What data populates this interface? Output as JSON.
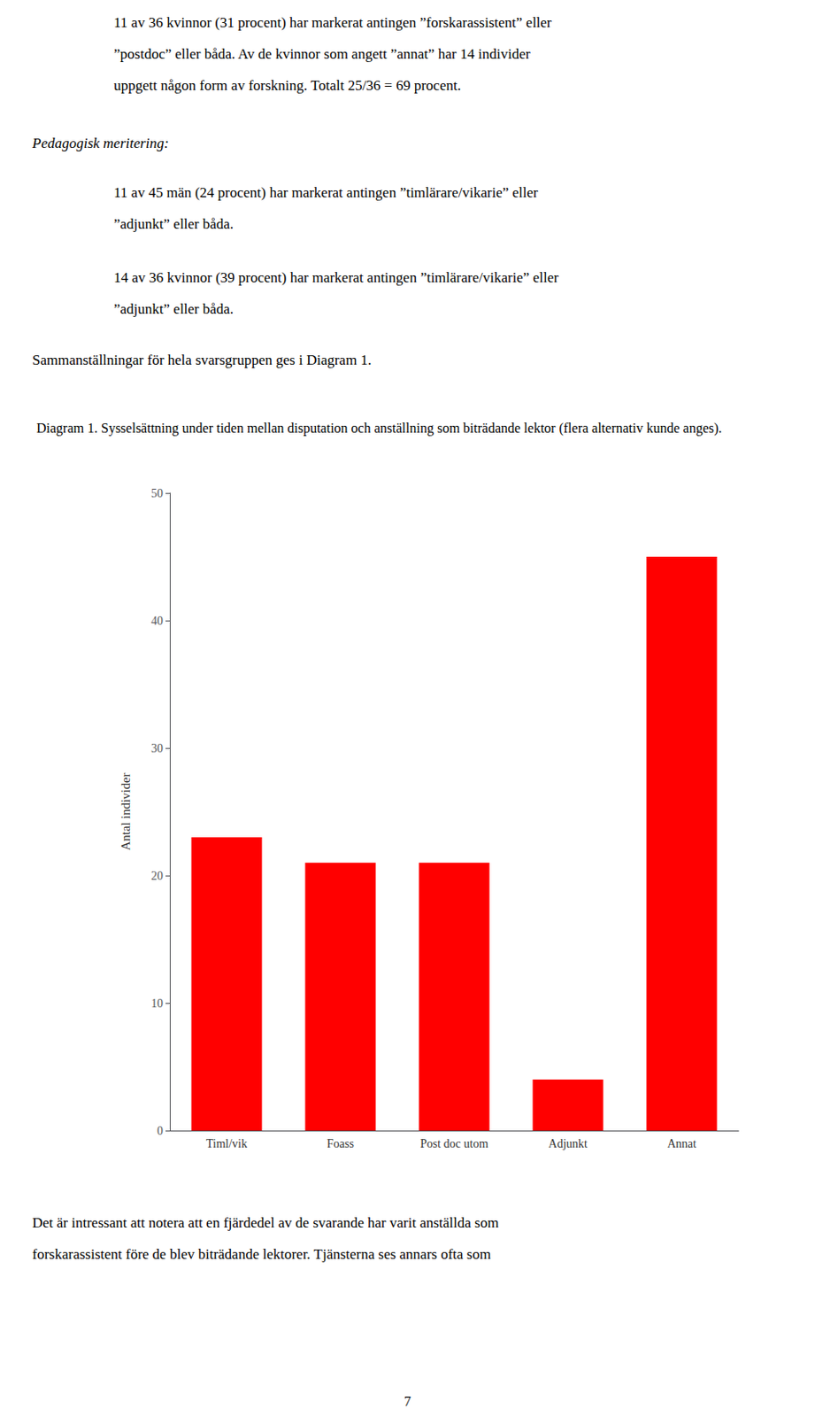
{
  "chart_data": {
    "type": "bar",
    "title": "Diagram 1. Sysselsättning under tiden mellan disputation och anställning som biträdande lektor (flera alternativ kunde anges).",
    "annotations": [
      "11 av 36 kvinnor (31 procent) har markerat antingen ”forskarassistent” eller",
      "”postdoc” eller båda. Av de kvinnor som angett ”annat” har 14 individer",
      "uppgett någon form av forskning. Totalt 25/36 = 69 procent.",
      "Pedagogisk meritering:",
      "11 av 45 män (24 procent) har markerat antingen ”timlärare/vikarie” eller",
      "”adjunkt” eller båda.",
      "14 av 36 kvinnor (39 procent) har markerat antingen ”timlärare/vikarie” eller",
      "”adjunkt” eller båda.",
      "Sammanställningar för hela svarsgruppen ges i Diagram 1.",
      "Det är intressant att notera att en fjärdedel av de svarande har varit anställda som",
      "forskarassistent före de blev biträdande lektorer. Tjänsterna ses annars ofta som",
      "7"
    ],
    "categories": [
      "Timl/vik",
      "Foass",
      "Post doc utom",
      "Adjunkt",
      "Annat"
    ],
    "values": [
      23,
      21,
      21,
      4,
      45
    ],
    "color": "#ff0000",
    "ylabel": "Antal individer",
    "ylim": [
      0,
      50
    ],
    "yticks": [
      0,
      10,
      20,
      30,
      40,
      50
    ],
    "grid": false
  }
}
